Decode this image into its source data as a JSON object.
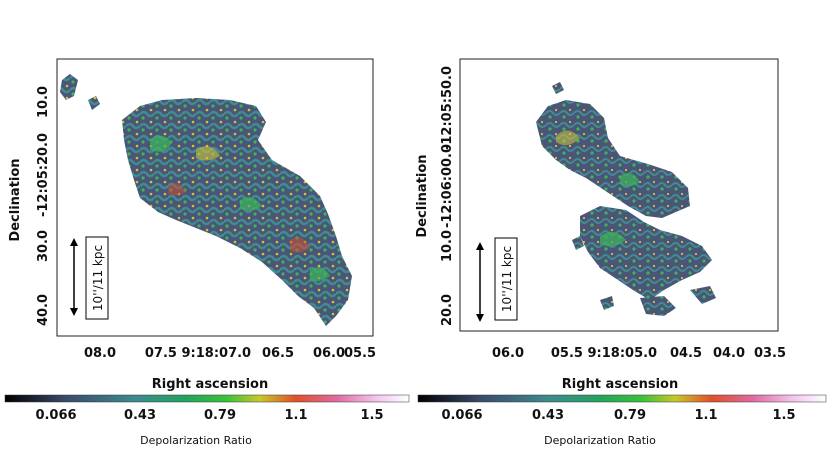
{
  "left_panel": {
    "y_axis_title": "Declination",
    "x_axis_title": "Right ascension",
    "y_ticks": [
      "10.0",
      "-12:05:20.0",
      "30.0",
      "40.0"
    ],
    "x_ticks": [
      "08.0",
      "07.5 9:18:07.0",
      "06.5",
      "06.0",
      "05.5"
    ],
    "scale_bar_label": "10''/11 kpc",
    "colorbar": {
      "ticks": [
        "0.066",
        "0.43",
        "0.79",
        "1.1",
        "1.5"
      ],
      "title": "Depolarization Ratio"
    }
  },
  "right_panel": {
    "y_axis_title": "Declination",
    "x_axis_title": "Right ascension",
    "y_ticks": [
      "-12:05:50.0",
      "-12:06:00.0",
      "10.0",
      "20.0"
    ],
    "x_ticks": [
      "06.0",
      "05.5 9:18:05.0",
      "04.5",
      "04.0",
      "03.5"
    ],
    "scale_bar_label": "10''/11 kpc",
    "colorbar": {
      "ticks": [
        "0.066",
        "0.43",
        "0.79",
        "1.1",
        "1.5"
      ],
      "title": "Depolarization Ratio"
    }
  },
  "colors": {
    "cmap": [
      "#000000",
      "#3a4a6a",
      "#3d8a8f",
      "#24a45c",
      "#2fbf2f",
      "#c8c82a",
      "#e0502a",
      "#e06aa0",
      "#f3c6ee",
      "#ffffff"
    ],
    "map_dark": "#4a5577",
    "map_teal": "#3f8d90",
    "map_green": "#3cb55a",
    "map_yellow": "#cfc43a",
    "map_red": "#d94a2c"
  }
}
